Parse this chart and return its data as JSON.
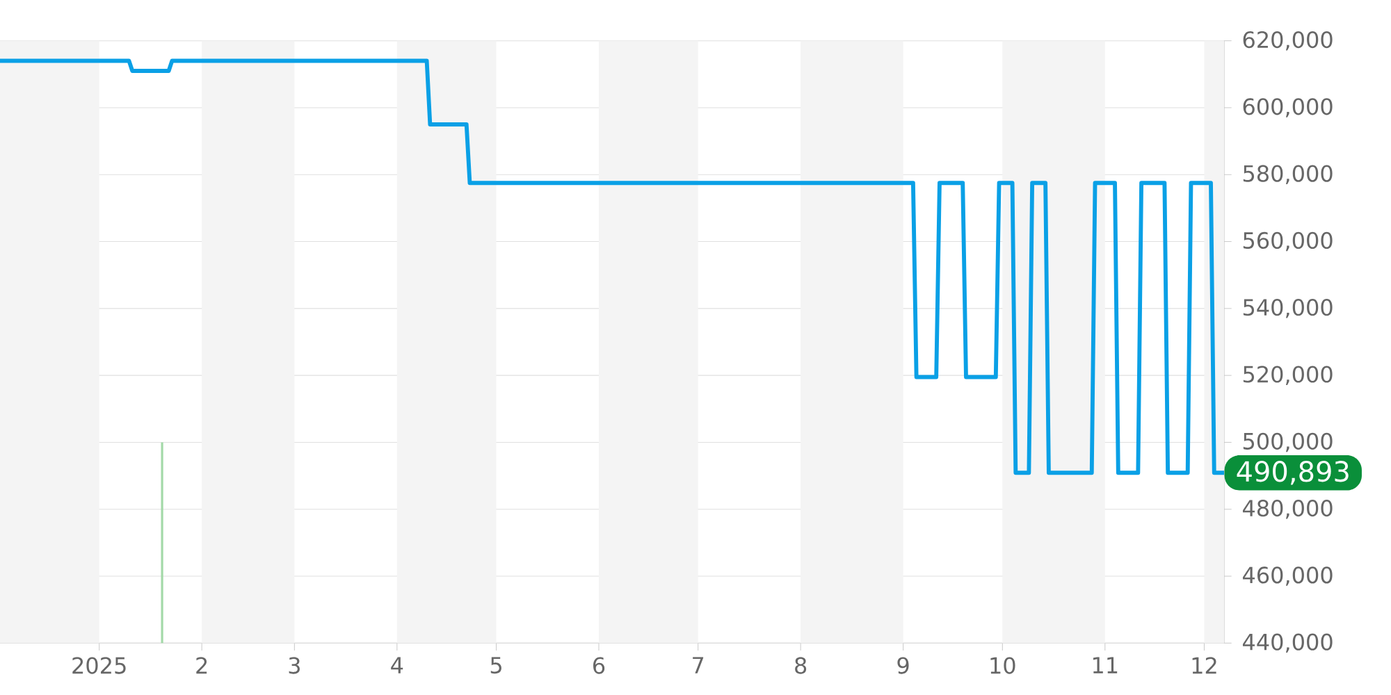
{
  "chart_data": {
    "type": "line",
    "xlim": [
      "2024-12-02",
      "2025-12-07"
    ],
    "xticks": [
      {
        "value": "2025-01-01",
        "label": "2025"
      },
      {
        "value": "2025-02-01",
        "label": "2"
      },
      {
        "value": "2025-03-01",
        "label": "3"
      },
      {
        "value": "2025-04-01",
        "label": "4"
      },
      {
        "value": "2025-05-01",
        "label": "5"
      },
      {
        "value": "2025-06-01",
        "label": "6"
      },
      {
        "value": "2025-07-01",
        "label": "7"
      },
      {
        "value": "2025-08-01",
        "label": "8"
      },
      {
        "value": "2025-09-01",
        "label": "9"
      },
      {
        "value": "2025-10-01",
        "label": "10"
      },
      {
        "value": "2025-11-01",
        "label": "11"
      },
      {
        "value": "2025-12-01",
        "label": "12"
      }
    ],
    "ylim": [
      440000,
      620000
    ],
    "yticks": [
      {
        "value": 440000,
        "label": "440,000"
      },
      {
        "value": 460000,
        "label": "460,000"
      },
      {
        "value": 480000,
        "label": "480,000"
      },
      {
        "value": 500000,
        "label": "500,000"
      },
      {
        "value": 520000,
        "label": "520,000"
      },
      {
        "value": 540000,
        "label": "540,000"
      },
      {
        "value": 560000,
        "label": "560,000"
      },
      {
        "value": 580000,
        "label": "580,000"
      },
      {
        "value": 600000,
        "label": "600,000"
      },
      {
        "value": 620000,
        "label": "620,000"
      }
    ],
    "grid": "y",
    "line_style": "solid",
    "series": [
      {
        "color": "#0aa0e6",
        "x": [
          "2024-12-02",
          "2025-01-10",
          "2025-01-11",
          "2025-01-22",
          "2025-01-23",
          "2025-04-10",
          "2025-04-11",
          "2025-04-22",
          "2025-04-23",
          "2025-09-04",
          "2025-09-05",
          "2025-09-11",
          "2025-09-12",
          "2025-09-19",
          "2025-09-20",
          "2025-09-29",
          "2025-09-30",
          "2025-10-04",
          "2025-10-05",
          "2025-10-09",
          "2025-10-10",
          "2025-10-14",
          "2025-10-15",
          "2025-10-28",
          "2025-10-29",
          "2025-11-04",
          "2025-11-05",
          "2025-11-11",
          "2025-11-12",
          "2025-11-19",
          "2025-11-20",
          "2025-11-26",
          "2025-11-27",
          "2025-12-03",
          "2025-12-04",
          "2025-12-07"
        ],
        "values": [
          614000,
          614000,
          611000,
          611000,
          614000,
          614000,
          595000,
          595000,
          577500,
          577500,
          519500,
          519500,
          577500,
          577500,
          519500,
          519500,
          577500,
          577500,
          490893,
          490893,
          577500,
          577500,
          490893,
          490893,
          577500,
          577500,
          490893,
          490893,
          577500,
          577500,
          490893,
          490893,
          577500,
          577500,
          490893,
          490893
        ]
      },
      {
        "type": "bar",
        "color": "#a3d9a8",
        "x": [
          "2025-01-20"
        ],
        "values": [
          500000
        ]
      }
    ],
    "bands": [
      {
        "axis": "x",
        "from": "2024-12-02",
        "to": "2025-01-01",
        "color": "#f4f4f4"
      },
      {
        "axis": "x",
        "from": "2025-02-01",
        "to": "2025-03-01",
        "color": "#f4f4f4"
      },
      {
        "axis": "x",
        "from": "2025-04-01",
        "to": "2025-05-01",
        "color": "#f4f4f4"
      },
      {
        "axis": "x",
        "from": "2025-06-01",
        "to": "2025-07-01",
        "color": "#f4f4f4"
      },
      {
        "axis": "x",
        "from": "2025-08-01",
        "to": "2025-09-01",
        "color": "#f4f4f4"
      },
      {
        "axis": "x",
        "from": "2025-10-01",
        "to": "2025-11-01",
        "color": "#f4f4f4"
      },
      {
        "axis": "x",
        "from": "2025-12-01",
        "to": "2025-12-07",
        "color": "#f4f4f4"
      }
    ],
    "annotations": [
      {
        "text": "490,893",
        "x": "2025-12-07",
        "y": 490893
      }
    ]
  }
}
